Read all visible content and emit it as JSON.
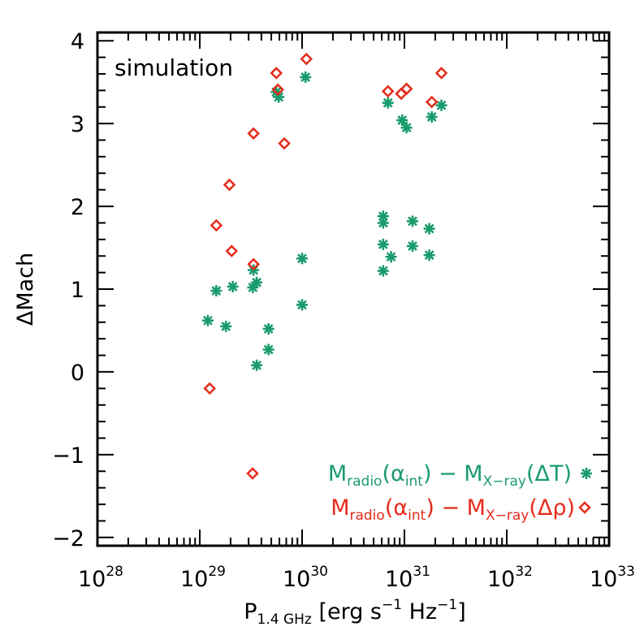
{
  "chart_data": {
    "type": "scatter",
    "title": "",
    "annotation": "simulation",
    "xlabel": {
      "main": "P",
      "sub": "1.4 GHz",
      "bracket_open": " [erg s",
      "s_exp": "−1",
      "hz": " Hz",
      "hz_exp": "−1",
      "bracket_close": "]"
    },
    "ylabel": "ΔMach",
    "xscale": "log",
    "xlim": [
      1e+28,
      1e+33
    ],
    "ylim": [
      -2.1,
      4.1
    ],
    "x_ticks": [
      {
        "base": "10",
        "exp": "28"
      },
      {
        "base": "10",
        "exp": "29"
      },
      {
        "base": "10",
        "exp": "30"
      },
      {
        "base": "10",
        "exp": "31"
      },
      {
        "base": "10",
        "exp": "32"
      },
      {
        "base": "10",
        "exp": "33"
      }
    ],
    "y_ticks": [
      "−2",
      "−1",
      "0",
      "1",
      "2",
      "3",
      "4"
    ],
    "legend_position": "bottom-right",
    "series": [
      {
        "name": "Mradio(αint) − MX-ray(ΔT)",
        "marker": "asterisk",
        "color": "#1a9b6c",
        "legend": {
          "m1": "M",
          "s1": "radio",
          "mid": "(α",
          "s2": "int",
          "minus": ") − M",
          "s3": "X−ray",
          "end": "(ΔT)"
        },
        "points": [
          {
            "x": 1.2e+29,
            "y": 0.62
          },
          {
            "x": 1.45e+29,
            "y": 0.98
          },
          {
            "x": 1.8e+29,
            "y": 0.55
          },
          {
            "x": 2.1e+29,
            "y": 1.03
          },
          {
            "x": 3.3e+29,
            "y": 1.02
          },
          {
            "x": 3.35e+29,
            "y": 1.23
          },
          {
            "x": 3.6e+29,
            "y": 1.08
          },
          {
            "x": 3.6e+29,
            "y": 0.08
          },
          {
            "x": 4.7e+29,
            "y": 0.52
          },
          {
            "x": 4.7e+29,
            "y": 0.27
          },
          {
            "x": 5.6e+29,
            "y": 3.38
          },
          {
            "x": 5.9e+29,
            "y": 3.32
          },
          {
            "x": 1e+30,
            "y": 1.37
          },
          {
            "x": 1e+30,
            "y": 0.81
          },
          {
            "x": 1.08e+30,
            "y": 3.56
          },
          {
            "x": 6.2e+30,
            "y": 1.88
          },
          {
            "x": 6.2e+30,
            "y": 1.8
          },
          {
            "x": 6.2e+30,
            "y": 1.54
          },
          {
            "x": 6.2e+30,
            "y": 1.22
          },
          {
            "x": 6.9e+30,
            "y": 3.25
          },
          {
            "x": 7.4e+30,
            "y": 1.39
          },
          {
            "x": 9.5e+30,
            "y": 3.04
          },
          {
            "x": 1.05e+31,
            "y": 2.95
          },
          {
            "x": 1.2e+31,
            "y": 1.82
          },
          {
            "x": 1.2e+31,
            "y": 1.52
          },
          {
            "x": 1.75e+31,
            "y": 1.73
          },
          {
            "x": 1.75e+31,
            "y": 1.41
          },
          {
            "x": 1.85e+31,
            "y": 3.08
          },
          {
            "x": 2.3e+31,
            "y": 3.22
          }
        ]
      },
      {
        "name": "Mradio(αint) − MX-ray(Δρ)",
        "marker": "diamond",
        "color": "#e52b1b",
        "legend": {
          "m1": "M",
          "s1": "radio",
          "mid": "(α",
          "s2": "int",
          "minus": ") − M",
          "s3": "X−ray",
          "end": "(Δρ)"
        },
        "points": [
          {
            "x": 1.25e+29,
            "y": -0.2
          },
          {
            "x": 1.45e+29,
            "y": 1.77
          },
          {
            "x": 1.95e+29,
            "y": 2.26
          },
          {
            "x": 2.05e+29,
            "y": 1.46
          },
          {
            "x": 3.35e+29,
            "y": 2.88
          },
          {
            "x": 3.35e+29,
            "y": 1.3
          },
          {
            "x": 5.6e+29,
            "y": 3.61
          },
          {
            "x": 5.8e+29,
            "y": 3.41
          },
          {
            "x": 6.7e+29,
            "y": 2.76
          },
          {
            "x": 1.1e+30,
            "y": 3.78
          },
          {
            "x": 6.9e+30,
            "y": 3.39
          },
          {
            "x": 9.3e+30,
            "y": 3.36
          },
          {
            "x": 1.05e+31,
            "y": 3.42
          },
          {
            "x": 1.85e+31,
            "y": 3.26
          },
          {
            "x": 2.3e+31,
            "y": 3.61
          }
        ]
      }
    ]
  }
}
